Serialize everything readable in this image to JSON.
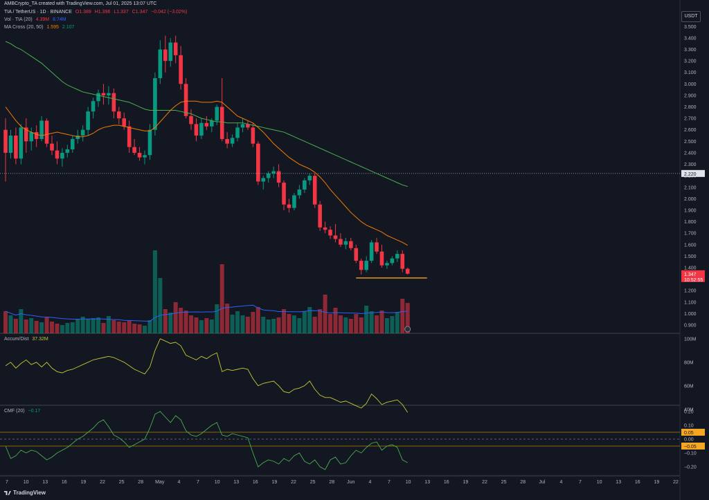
{
  "header": {
    "credit": "AMBCrypto_TA created with TradingView.com, Jul 01, 2025 13:07 UTC",
    "symbol": "TIA / TetherUS · 1D · BINANCE",
    "ohlc": {
      "o": "O1.389",
      "h": "H1.396",
      "l": "L1.337",
      "c": "C1.347",
      "chg": "−0.042 (−3.02%)"
    },
    "vol_label": "Vol · TIA (20)",
    "vol_v1": "4.39M",
    "vol_v2": "8.74M",
    "ma_label": "MA Cross (20, 50)",
    "ma_v1": "1.595",
    "ma_v2": "2.107",
    "accum_label": "Accum/Dist",
    "accum_value": "37.32M",
    "cmf_label": "CMF (20)",
    "cmf_value": "−0.17",
    "currency": "USDT",
    "brand": "TradingView"
  },
  "colors": {
    "bg": "#131722",
    "up": "#089981",
    "down": "#f23645",
    "ma20": "#f57c00",
    "ma50": "#4caf50",
    "volma": "#2962ff",
    "accum": "#c8c832",
    "cmf": "#4caf50"
  },
  "price_axis": {
    "ticks": [
      "3.500",
      "3.400",
      "3.300",
      "3.200",
      "3.100",
      "3.000",
      "2.900",
      "2.800",
      "2.700",
      "2.600",
      "2.500",
      "2.400",
      "2.300",
      "2.200",
      "2.100",
      "2.000",
      "1.900",
      "1.800",
      "1.700",
      "1.600",
      "1.500",
      "1.400",
      "1.300",
      "1.200",
      "1.100",
      "1.000",
      "0.900"
    ],
    "hline_label": "2.220",
    "last_price": "1.347",
    "countdown": "10:52:55"
  },
  "accum_axis": {
    "ticks": [
      "100M",
      "80M",
      "60M",
      "40M"
    ]
  },
  "cmf_axis": {
    "ticks": [
      "0.20",
      "0.10",
      "0.05",
      "0.00",
      "−0.05",
      "−0.10",
      "−0.20"
    ]
  },
  "time_axis": {
    "labels": [
      "7",
      "10",
      "13",
      "16",
      "19",
      "22",
      "25",
      "28",
      "May",
      "4",
      "7",
      "10",
      "13",
      "16",
      "19",
      "22",
      "25",
      "28",
      "Jun",
      "4",
      "7",
      "10",
      "13",
      "16",
      "19",
      "22",
      "25",
      "28",
      "Jul",
      "4",
      "7",
      "10",
      "13",
      "16",
      "19",
      "22"
    ]
  },
  "chart_data": {
    "type": "candlestick",
    "title": "TIA / TetherUS · 1D · BINANCE",
    "candles_ohlc": [
      [
        2.6,
        2.7,
        2.15,
        2.4
      ],
      [
        2.4,
        2.6,
        2.35,
        2.55
      ],
      [
        2.55,
        2.62,
        2.3,
        2.35
      ],
      [
        2.35,
        2.65,
        2.3,
        2.62
      ],
      [
        2.62,
        2.7,
        2.4,
        2.5
      ],
      [
        2.5,
        2.62,
        2.42,
        2.58
      ],
      [
        2.58,
        2.64,
        2.45,
        2.52
      ],
      [
        2.52,
        2.72,
        2.5,
        2.68
      ],
      [
        2.68,
        2.7,
        2.45,
        2.48
      ],
      [
        2.48,
        2.55,
        2.38,
        2.42
      ],
      [
        2.42,
        2.5,
        2.3,
        2.35
      ],
      [
        2.35,
        2.44,
        2.28,
        2.4
      ],
      [
        2.4,
        2.47,
        2.36,
        2.43
      ],
      [
        2.43,
        2.55,
        2.4,
        2.52
      ],
      [
        2.52,
        2.6,
        2.48,
        2.55
      ],
      [
        2.55,
        2.64,
        2.5,
        2.6
      ],
      [
        2.6,
        2.8,
        2.55,
        2.76
      ],
      [
        2.76,
        2.88,
        2.7,
        2.85
      ],
      [
        2.85,
        2.95,
        2.8,
        2.92
      ],
      [
        2.92,
        3.0,
        2.82,
        2.9
      ],
      [
        2.9,
        2.98,
        2.82,
        2.92
      ],
      [
        2.92,
        2.96,
        2.7,
        2.76
      ],
      [
        2.76,
        2.8,
        2.65,
        2.7
      ],
      [
        2.7,
        2.75,
        2.6,
        2.63
      ],
      [
        2.63,
        2.68,
        2.4,
        2.45
      ],
      [
        2.45,
        2.52,
        2.38,
        2.4
      ],
      [
        2.4,
        2.45,
        2.33,
        2.36
      ],
      [
        2.36,
        2.42,
        2.3,
        2.38
      ],
      [
        2.38,
        2.65,
        2.34,
        2.6
      ],
      [
        2.6,
        3.1,
        2.55,
        3.05
      ],
      [
        3.05,
        3.38,
        3.0,
        3.3
      ],
      [
        3.3,
        3.42,
        3.1,
        3.2
      ],
      [
        3.2,
        3.4,
        3.15,
        3.36
      ],
      [
        3.36,
        3.42,
        3.18,
        3.25
      ],
      [
        3.25,
        3.33,
        2.95,
        3.0
      ],
      [
        3.0,
        3.05,
        2.7,
        2.72
      ],
      [
        2.72,
        2.78,
        2.6,
        2.65
      ],
      [
        2.65,
        2.7,
        2.5,
        2.55
      ],
      [
        2.55,
        2.7,
        2.52,
        2.66
      ],
      [
        2.66,
        2.72,
        2.6,
        2.63
      ],
      [
        2.63,
        2.7,
        2.58,
        2.68
      ],
      [
        2.68,
        2.82,
        2.64,
        2.8
      ],
      [
        2.8,
        3.05,
        2.5,
        2.52
      ],
      [
        2.52,
        2.58,
        2.44,
        2.48
      ],
      [
        2.48,
        2.56,
        2.45,
        2.53
      ],
      [
        2.53,
        2.66,
        2.5,
        2.62
      ],
      [
        2.62,
        2.7,
        2.58,
        2.65
      ],
      [
        2.65,
        2.68,
        2.6,
        2.62
      ],
      [
        2.62,
        2.66,
        2.45,
        2.48
      ],
      [
        2.48,
        2.5,
        2.12,
        2.15
      ],
      [
        2.15,
        2.2,
        2.08,
        2.18
      ],
      [
        2.18,
        2.24,
        2.14,
        2.22
      ],
      [
        2.22,
        2.28,
        2.18,
        2.24
      ],
      [
        2.24,
        2.3,
        2.1,
        2.14
      ],
      [
        2.14,
        2.16,
        1.9,
        1.95
      ],
      [
        1.95,
        2.0,
        1.88,
        1.92
      ],
      [
        1.92,
        2.05,
        1.9,
        2.03
      ],
      [
        2.03,
        2.12,
        2.0,
        2.08
      ],
      [
        2.08,
        2.18,
        2.05,
        2.16
      ],
      [
        2.16,
        2.22,
        2.12,
        2.2
      ],
      [
        2.2,
        2.22,
        1.92,
        1.95
      ],
      [
        1.95,
        1.98,
        1.72,
        1.75
      ],
      [
        1.75,
        1.8,
        1.7,
        1.73
      ],
      [
        1.73,
        1.76,
        1.65,
        1.68
      ],
      [
        1.68,
        1.78,
        1.62,
        1.65
      ],
      [
        1.65,
        1.7,
        1.58,
        1.6
      ],
      [
        1.6,
        1.66,
        1.56,
        1.63
      ],
      [
        1.63,
        1.66,
        1.55,
        1.57
      ],
      [
        1.57,
        1.6,
        1.44,
        1.46
      ],
      [
        1.46,
        1.48,
        1.34,
        1.38
      ],
      [
        1.38,
        1.5,
        1.36,
        1.46
      ],
      [
        1.46,
        1.64,
        1.44,
        1.62
      ],
      [
        1.62,
        1.66,
        1.52,
        1.54
      ],
      [
        1.54,
        1.6,
        1.4,
        1.42
      ],
      [
        1.42,
        1.46,
        1.39,
        1.44
      ],
      [
        1.44,
        1.5,
        1.42,
        1.48
      ],
      [
        1.48,
        1.55,
        1.45,
        1.52
      ],
      [
        1.52,
        1.55,
        1.36,
        1.39
      ],
      [
        1.39,
        1.4,
        1.34,
        1.347
      ]
    ],
    "volume_mil": [
      3.2,
      2.6,
      2.1,
      3.5,
      2.0,
      2.2,
      1.8,
      1.6,
      2.3,
      1.7,
      1.4,
      1.2,
      1.5,
      1.6,
      2.0,
      2.4,
      2.1,
      2.2,
      2.3,
      1.5,
      2.5,
      1.9,
      1.7,
      1.6,
      1.8,
      1.4,
      1.3,
      1.1,
      1.9,
      12.0,
      8.0,
      3.5,
      3.0,
      4.5,
      3.7,
      3.3,
      2.6,
      2.3,
      1.9,
      2.2,
      2.0,
      4.2,
      10.0,
      4.3,
      2.7,
      3.2,
      2.6,
      2.4,
      3.1,
      3.8,
      2.4,
      2.0,
      2.1,
      2.3,
      3.5,
      2.8,
      2.6,
      2.2,
      3.2,
      3.8,
      2.4,
      3.5,
      5.6,
      2.8,
      3.7,
      2.6,
      2.3,
      2.1,
      2.8,
      2.3,
      4.0,
      3.2,
      2.6,
      3.3,
      2.2,
      2.5,
      3.1,
      5.0,
      4.39
    ],
    "accum_dist_mil": [
      77,
      80,
      75,
      79,
      82,
      78,
      80,
      76,
      80,
      75,
      72,
      71,
      73,
      74,
      76,
      78,
      80,
      82,
      83,
      84,
      85,
      84,
      82,
      80,
      77,
      74,
      72,
      70,
      76,
      90,
      100,
      98,
      96,
      97,
      94,
      86,
      84,
      82,
      85,
      83,
      86,
      88,
      72,
      74,
      73,
      74,
      75,
      74,
      66,
      60,
      62,
      63,
      64,
      60,
      55,
      54,
      57,
      58,
      60,
      64,
      57,
      52,
      50,
      50,
      48,
      46,
      47,
      45,
      43,
      41,
      45,
      53,
      49,
      44,
      46,
      47,
      48,
      44,
      37.32
    ],
    "cmf": [
      -0.05,
      -0.14,
      -0.12,
      -0.08,
      -0.1,
      -0.08,
      -0.09,
      -0.12,
      -0.15,
      -0.13,
      -0.1,
      -0.08,
      -0.06,
      -0.03,
      0.0,
      0.02,
      0.05,
      0.08,
      0.12,
      0.14,
      0.09,
      0.03,
      0.01,
      -0.02,
      -0.06,
      -0.04,
      -0.02,
      0.0,
      0.08,
      0.18,
      0.2,
      0.16,
      0.12,
      0.17,
      0.14,
      0.06,
      0.03,
      0.02,
      0.04,
      0.07,
      0.1,
      0.12,
      0.03,
      0.02,
      0.04,
      0.03,
      0.02,
      0.01,
      -0.1,
      -0.2,
      -0.17,
      -0.15,
      -0.16,
      -0.18,
      -0.14,
      -0.16,
      -0.12,
      -0.1,
      -0.16,
      -0.18,
      -0.15,
      -0.2,
      -0.22,
      -0.15,
      -0.13,
      -0.18,
      -0.17,
      -0.12,
      -0.08,
      -0.1,
      -0.06,
      -0.03,
      -0.02,
      -0.08,
      -0.05,
      -0.04,
      -0.06,
      -0.15,
      -0.17
    ],
    "ma20": [
      2.8,
      2.74,
      2.68,
      2.63,
      2.6,
      2.58,
      2.56,
      2.55,
      2.56,
      2.57,
      2.58,
      2.57,
      2.56,
      2.55,
      2.54,
      2.54,
      2.55,
      2.57,
      2.6,
      2.62,
      2.63,
      2.64,
      2.64,
      2.63,
      2.62,
      2.61,
      2.6,
      2.59,
      2.59,
      2.62,
      2.67,
      2.72,
      2.77,
      2.81,
      2.84,
      2.85,
      2.85,
      2.85,
      2.84,
      2.84,
      2.84,
      2.85,
      2.84,
      2.8,
      2.76,
      2.72,
      2.7,
      2.68,
      2.66,
      2.62,
      2.58,
      2.53,
      2.48,
      2.44,
      2.4,
      2.36,
      2.33,
      2.3,
      2.28,
      2.26,
      2.23,
      2.19,
      2.14,
      2.08,
      2.03,
      1.98,
      1.93,
      1.88,
      1.84,
      1.8,
      1.77,
      1.75,
      1.73,
      1.71,
      1.68,
      1.66,
      1.64,
      1.62,
      1.595
    ],
    "ma50": [
      3.37,
      3.35,
      3.32,
      3.3,
      3.27,
      3.24,
      3.21,
      3.18,
      3.14,
      3.1,
      3.06,
      3.02,
      2.99,
      2.97,
      2.95,
      2.93,
      2.92,
      2.91,
      2.9,
      2.89,
      2.88,
      2.87,
      2.86,
      2.85,
      2.84,
      2.82,
      2.8,
      2.78,
      2.77,
      2.77,
      2.77,
      2.77,
      2.77,
      2.77,
      2.76,
      2.75,
      2.74,
      2.72,
      2.7,
      2.69,
      2.68,
      2.67,
      2.67,
      2.66,
      2.66,
      2.66,
      2.66,
      2.65,
      2.64,
      2.63,
      2.62,
      2.61,
      2.6,
      2.59,
      2.58,
      2.56,
      2.54,
      2.52,
      2.5,
      2.48,
      2.46,
      2.44,
      2.42,
      2.4,
      2.38,
      2.36,
      2.34,
      2.32,
      2.3,
      2.28,
      2.26,
      2.24,
      2.22,
      2.2,
      2.18,
      2.16,
      2.14,
      2.12,
      2.107
    ],
    "support_level": 1.31,
    "horizontal_line": 2.22
  }
}
